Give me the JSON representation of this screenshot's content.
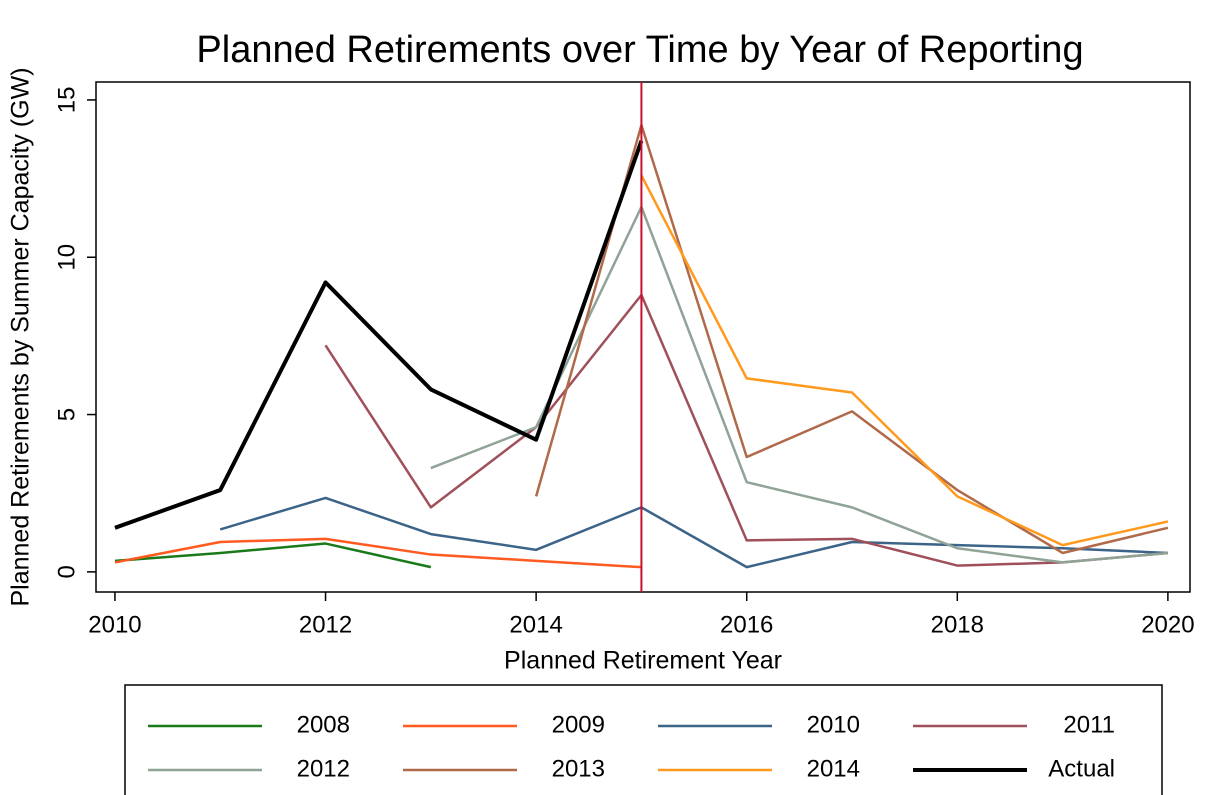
{
  "chart_data": {
    "type": "line",
    "title": "Planned Retirements over Time by Year of Reporting",
    "x_label": "Planned Retirement Year",
    "y_label": "Planned Retirements by Summer Capacity (GW)",
    "x": [
      2010,
      2011,
      2012,
      2013,
      2014,
      2015,
      2016,
      2017,
      2018,
      2019,
      2020
    ],
    "xlim": [
      2009.82,
      2020.21
    ],
    "xticks": [
      2010,
      2012,
      2014,
      2016,
      2018,
      2020
    ],
    "ylim": [
      -0.64,
      15.57
    ],
    "yticks": [
      0,
      5,
      10,
      15
    ],
    "vline": {
      "x": 2015,
      "color": "#c8102e"
    },
    "series": [
      {
        "name": "2008",
        "color": "#1a7a1a",
        "width": 2.5,
        "values": [
          0.35,
          0.6,
          0.9,
          0.15,
          null,
          null,
          null,
          null,
          null,
          null,
          null
        ]
      },
      {
        "name": "2009",
        "color": "#ff5a1f",
        "width": 2.5,
        "values": [
          0.3,
          0.95,
          1.05,
          0.55,
          0.35,
          0.15,
          null,
          null,
          null,
          null,
          null
        ]
      },
      {
        "name": "2010",
        "color": "#3c6488",
        "width": 2.5,
        "values": [
          null,
          1.35,
          2.35,
          1.2,
          0.7,
          2.05,
          0.15,
          0.95,
          0.85,
          0.75,
          0.6
        ]
      },
      {
        "name": "2011",
        "color": "#a0505a",
        "width": 2.5,
        "values": [
          null,
          null,
          7.2,
          2.05,
          4.6,
          8.8,
          1.0,
          1.05,
          0.2,
          0.3,
          0.6
        ]
      },
      {
        "name": "2012",
        "color": "#8fa396",
        "width": 2.5,
        "values": [
          null,
          null,
          null,
          3.3,
          4.6,
          11.6,
          2.85,
          2.05,
          0.75,
          0.3,
          0.6
        ]
      },
      {
        "name": "2013",
        "color": "#b06a4a",
        "width": 2.5,
        "values": [
          null,
          null,
          null,
          null,
          2.4,
          14.2,
          3.65,
          5.1,
          2.6,
          0.6,
          1.4
        ]
      },
      {
        "name": "2014",
        "color": "#ff9a1e",
        "width": 2.5,
        "values": [
          null,
          null,
          null,
          null,
          null,
          12.6,
          6.15,
          5.7,
          2.4,
          0.85,
          1.6
        ]
      },
      {
        "name": "Actual",
        "color": "#000000",
        "width": 4,
        "values": [
          1.4,
          2.6,
          9.2,
          5.8,
          4.2,
          13.7,
          null,
          null,
          null,
          null,
          null
        ]
      }
    ]
  }
}
